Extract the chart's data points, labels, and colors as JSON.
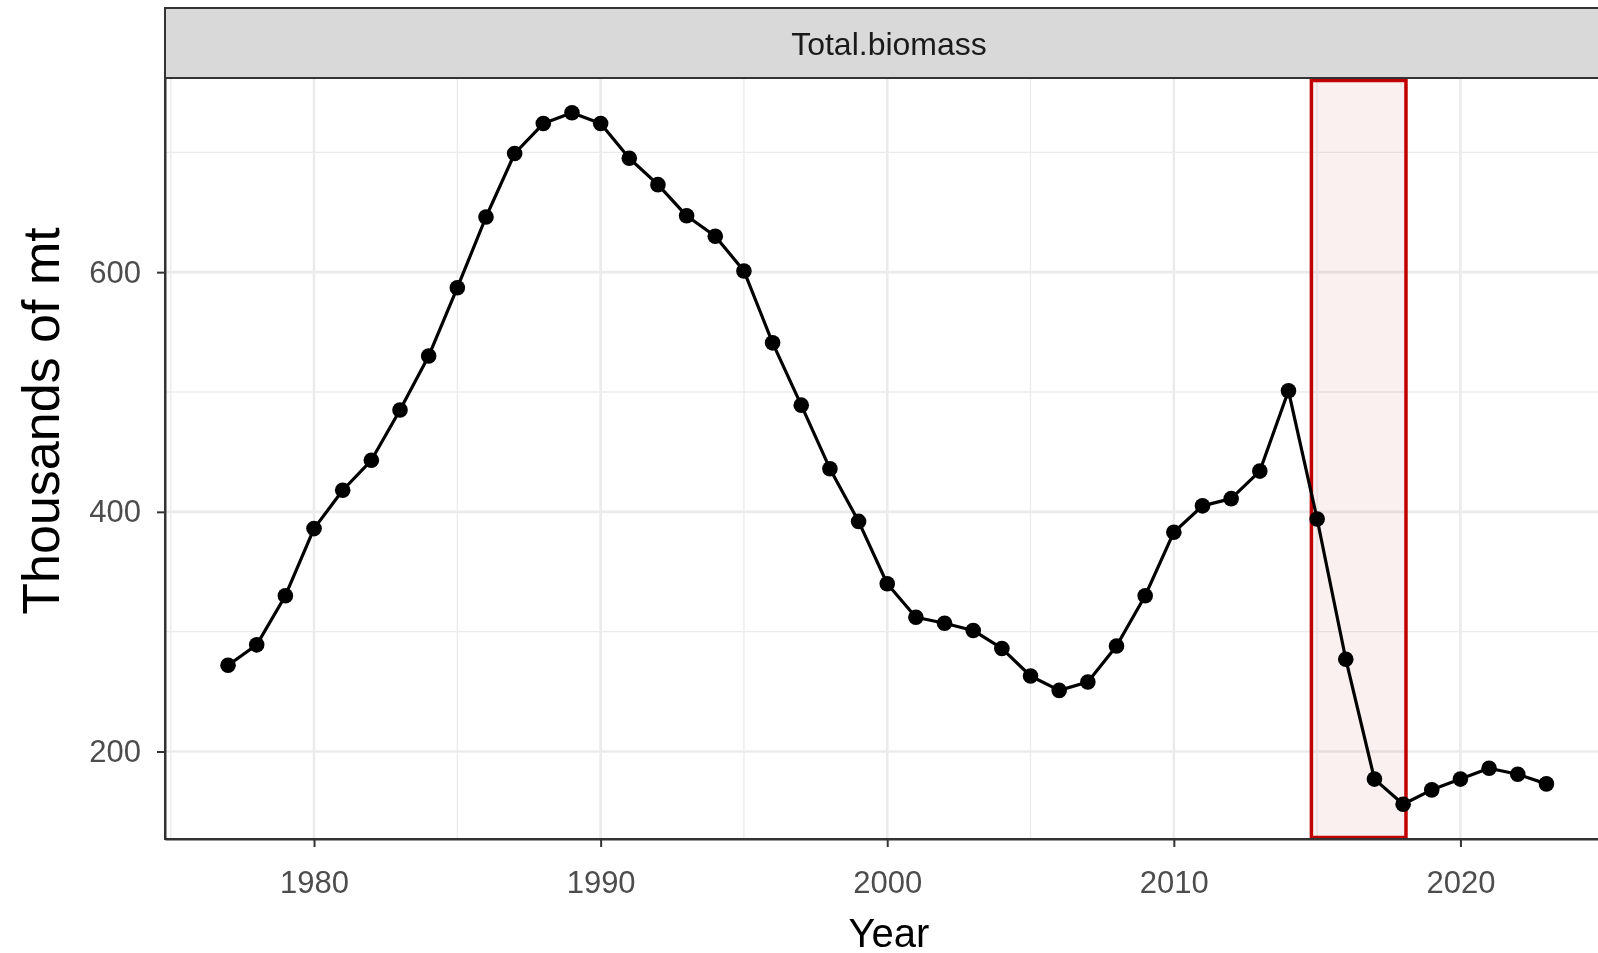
{
  "chart_data": {
    "type": "line",
    "title": "Total.biomass",
    "xlabel": "Year",
    "ylabel": "Thousands of mt",
    "x": [
      1977,
      1978,
      1979,
      1980,
      1981,
      1982,
      1983,
      1984,
      1985,
      1986,
      1987,
      1988,
      1989,
      1990,
      1991,
      1992,
      1993,
      1994,
      1995,
      1996,
      1997,
      1998,
      1999,
      2000,
      2001,
      2002,
      2003,
      2004,
      2005,
      2006,
      2007,
      2008,
      2009,
      2010,
      2011,
      2012,
      2013,
      2014,
      2015,
      2016,
      2017,
      2018,
      2019,
      2020,
      2021,
      2022,
      2023
    ],
    "series": [
      {
        "color": "#000000",
        "values": [
          272,
          289,
          330,
          386,
          418,
          443,
          485,
          530,
          587,
          646,
          699,
          724,
          733,
          724,
          695,
          673,
          647,
          630,
          601,
          541,
          489,
          436,
          392,
          340,
          312,
          307,
          301,
          286,
          263,
          251,
          258,
          288,
          330,
          383,
          405,
          411,
          434,
          501,
          394,
          277,
          177,
          156,
          168,
          177,
          186,
          181,
          173
        ]
      }
    ],
    "xlim": [
      1974.8,
      2024.8
    ],
    "ylim": [
      127,
      762
    ],
    "xticks": [
      {
        "value": 1975,
        "label": null
      },
      1980,
      {
        "value": 1985,
        "label": null
      },
      1990,
      {
        "value": 1995,
        "label": null
      },
      2000,
      {
        "value": 2005,
        "label": null
      },
      2010,
      {
        "value": 2015,
        "label": null
      },
      2020
    ],
    "yticks": [
      200,
      {
        "value": 300,
        "label": null
      },
      400,
      {
        "value": 500,
        "label": null
      },
      600,
      {
        "value": 700,
        "label": null
      }
    ],
    "bands": [
      {
        "axis": "x",
        "from": 2014.8,
        "to": 2018.1,
        "color": "#c00000"
      }
    ],
    "grid": true,
    "marker": "circle",
    "line_style": "solid"
  }
}
